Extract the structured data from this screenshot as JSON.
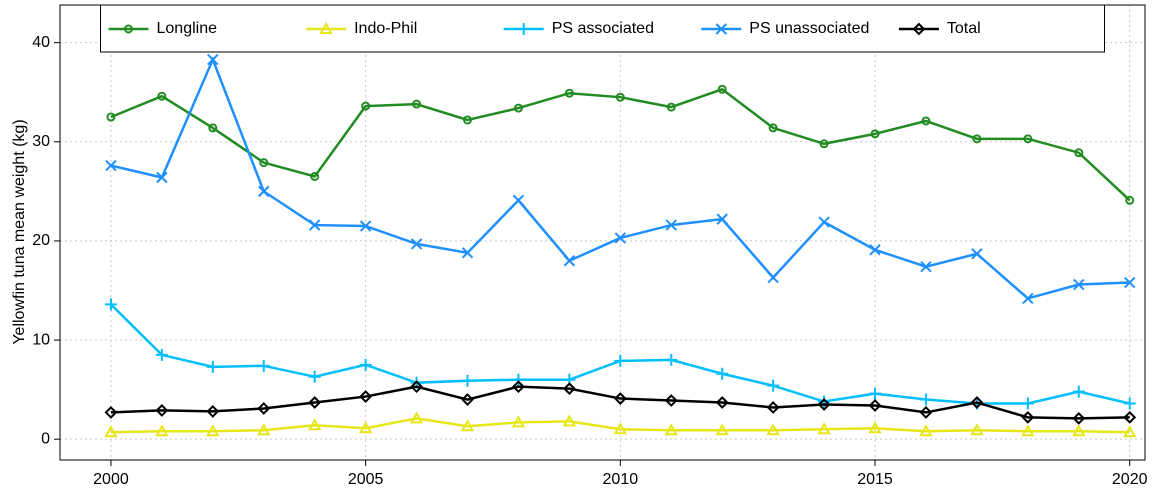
{
  "chart_data": {
    "type": "line",
    "ylabel": "Yellowfin tuna mean weight (kg)",
    "x": [
      2000,
      2001,
      2002,
      2003,
      2004,
      2005,
      2006,
      2007,
      2008,
      2009,
      2010,
      2011,
      2012,
      2013,
      2014,
      2015,
      2016,
      2017,
      2018,
      2019,
      2020
    ],
    "series": [
      {
        "name": "Longline",
        "color": "#228b22",
        "marker": "circle",
        "values": [
          32.5,
          34.6,
          31.4,
          27.9,
          26.5,
          33.6,
          33.8,
          32.2,
          33.4,
          34.9,
          34.5,
          33.5,
          35.3,
          31.4,
          29.8,
          30.8,
          32.1,
          30.3,
          30.3,
          28.9,
          24.1
        ]
      },
      {
        "name": "Indo-Phil",
        "color": "#e6e619",
        "marker": "triangle",
        "values": [
          0.7,
          0.8,
          0.8,
          0.9,
          1.4,
          1.1,
          2.1,
          1.3,
          1.7,
          1.8,
          1.0,
          0.9,
          0.9,
          0.9,
          1.0,
          1.1,
          0.8,
          0.9,
          0.8,
          0.8,
          0.7
        ]
      },
      {
        "name": "PS associated",
        "color": "#00bfff",
        "marker": "plus",
        "values": [
          13.6,
          8.5,
          7.3,
          7.4,
          6.3,
          7.5,
          5.7,
          5.9,
          6.0,
          6.0,
          7.9,
          8.0,
          6.6,
          5.4,
          3.8,
          4.6,
          4.0,
          3.6,
          3.6,
          4.8,
          3.6
        ]
      },
      {
        "name": "PS unassociated",
        "color": "#1e90ff",
        "marker": "cross",
        "values": [
          27.6,
          26.4,
          38.3,
          25.0,
          21.6,
          21.5,
          19.7,
          18.8,
          24.1,
          18.0,
          20.3,
          21.6,
          22.2,
          16.3,
          21.9,
          19.1,
          17.4,
          18.7,
          14.2,
          15.6,
          15.8
        ]
      },
      {
        "name": "Total",
        "color": "#000000",
        "marker": "diamond",
        "values": [
          2.7,
          2.9,
          2.8,
          3.1,
          3.7,
          4.3,
          5.3,
          4.0,
          5.3,
          5.1,
          4.1,
          3.9,
          3.7,
          3.2,
          3.5,
          3.4,
          2.7,
          3.7,
          2.2,
          2.1,
          2.2
        ]
      }
    ],
    "xlim": [
      1999,
      2020.3
    ],
    "xticks": [
      2000,
      2005,
      2010,
      2015,
      2020
    ],
    "ylim": [
      -2.1,
      43.8
    ],
    "yticks": [
      0,
      10,
      20,
      30,
      40
    ],
    "grid": true,
    "legend": "top"
  }
}
